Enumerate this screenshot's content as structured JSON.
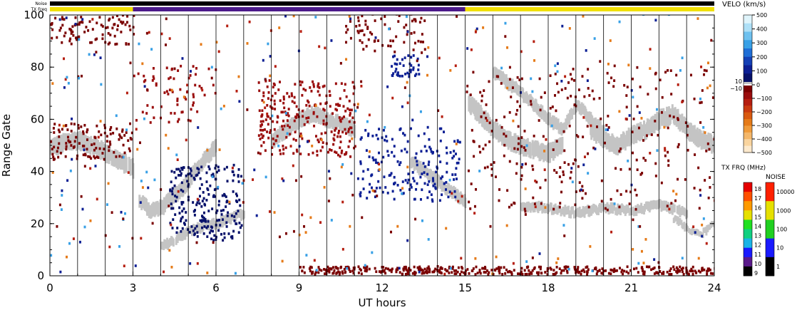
{
  "chart_data": {
    "type": "heatmap",
    "xlabel": "UT hours",
    "ylabel": "Range Gate",
    "xlim": [
      0,
      24
    ],
    "ylim": [
      0,
      100
    ],
    "x_ticks": [
      "0",
      "3",
      "6",
      "9",
      "12",
      "15",
      "18",
      "21",
      "24"
    ],
    "y_ticks": [
      "0",
      "20",
      "40",
      "60",
      "80",
      "100"
    ],
    "grid": "vertical lines every hour",
    "top_bars": {
      "noise_label": "Noise",
      "txfreq_label": "TX Freq",
      "segments": [
        {
          "from": 0,
          "to": 3,
          "color": "#f0e000"
        },
        {
          "from": 3,
          "to": 15,
          "color": "#4b1a8a"
        },
        {
          "from": 15,
          "to": 24,
          "color": "#f0e000"
        }
      ]
    },
    "velocity_legend": {
      "title": "VELO (km/s)",
      "ticks": [
        "500",
        "400",
        "300",
        "200",
        "100",
        "0",
        "−100",
        "−200",
        "−300",
        "−400",
        "−500"
      ],
      "ground_scatter_labels": [
        "10",
        "−10"
      ],
      "colors_positive": [
        "#dff4fb",
        "#aee0f7",
        "#6ec1ef",
        "#38a0e6",
        "#1f6ed6",
        "#1440b5",
        "#0c1f94",
        "#07116a"
      ],
      "colors_negative": [
        "#7a0000",
        "#9a0d0d",
        "#b51e10",
        "#c93a10",
        "#d95a10",
        "#e57a18",
        "#ef9a3a",
        "#f4b76a",
        "#f9d49e",
        "#fce9cc"
      ]
    },
    "txfreq_legend": {
      "title": "TX FRQ (MHz)",
      "ticks": [
        "9",
        "10",
        "11",
        "12",
        "13",
        "14",
        "15",
        "16",
        "17",
        "18"
      ],
      "colors": [
        "#000000",
        "#5a1a8a",
        "#1a1aff",
        "#1ab4e6",
        "#10d080",
        "#20e020",
        "#e6e000",
        "#ff9a00",
        "#ff5000",
        "#e60000"
      ]
    },
    "noise_legend": {
      "title": "NOISE",
      "ticks": [
        "1",
        "10",
        "100",
        "1000",
        "10000"
      ],
      "colors": [
        "#000000",
        "#1a1aff",
        "#20d020",
        "#e6e000",
        "#ff2000"
      ]
    },
    "series": [
      {
        "kind": "ground scatter band",
        "color": "#c4c4c4",
        "x": [
          0,
          0.5,
          1,
          1.5,
          2,
          2.5,
          3
        ],
        "y": [
          49,
          51,
          52,
          50,
          47,
          44,
          41
        ],
        "width": 6
      },
      {
        "kind": "ground scatter band",
        "color": "#c4c4c4",
        "x": [
          3.2,
          3.6,
          4,
          4.4,
          4.8,
          5.2,
          5.6,
          6
        ],
        "y": [
          29,
          25,
          26,
          30,
          34,
          40,
          45,
          50
        ],
        "width": 5
      },
      {
        "kind": "ground scatter band",
        "color": "#c4c4c4",
        "x": [
          4,
          4.5,
          5,
          5.5,
          6,
          6.5,
          7
        ],
        "y": [
          11,
          14,
          17,
          19,
          20,
          22,
          24
        ],
        "width": 3
      },
      {
        "kind": "ground scatter band",
        "color": "#c4c4c4",
        "x": [
          8,
          8.5,
          9,
          9.5,
          10,
          10.5,
          11
        ],
        "y": [
          52,
          56,
          60,
          62,
          60,
          58,
          56
        ],
        "width": 5
      },
      {
        "kind": "ground scatter band",
        "color": "#c4c4c4",
        "x": [
          13,
          13.5,
          14,
          14.5,
          15
        ],
        "y": [
          44,
          40,
          36,
          32,
          28
        ],
        "width": 4
      },
      {
        "kind": "ground scatter band",
        "color": "#c4c4c4",
        "x": [
          15.1,
          15.5,
          16,
          16.5,
          17,
          17.5,
          18,
          18.5
        ],
        "y": [
          66,
          62,
          56,
          52,
          50,
          48,
          47,
          50
        ],
        "width": 6
      },
      {
        "kind": "ground scatter band",
        "color": "#c4c4c4",
        "x": [
          16,
          16.5,
          17,
          17.5,
          18,
          18.5,
          19,
          19.5,
          20
        ],
        "y": [
          78,
          74,
          70,
          65,
          60,
          56,
          66,
          60,
          55
        ],
        "width": 4
      },
      {
        "kind": "ground scatter band",
        "color": "#c4c4c4",
        "x": [
          19.5,
          20,
          20.5,
          21,
          21.5,
          22,
          22.5,
          23,
          23.5,
          24
        ],
        "y": [
          56,
          52,
          50,
          54,
          56,
          60,
          62,
          56,
          52,
          50
        ],
        "width": 6
      },
      {
        "kind": "ground scatter band",
        "color": "#c4c4c4",
        "x": [
          17,
          18,
          19,
          20,
          21,
          22,
          23
        ],
        "y": [
          27,
          26,
          24,
          26,
          25,
          27,
          24
        ],
        "width": 3
      },
      {
        "kind": "ground scatter band",
        "color": "#c4c4c4",
        "x": [
          22.5,
          23,
          23.5,
          24
        ],
        "y": [
          22,
          18,
          16,
          20
        ],
        "width": 2
      },
      {
        "kind": "velocity cluster",
        "color": "#07116a",
        "ranges": {
          "x": [
            4.3,
            6.9
          ],
          "y": [
            13,
            42
          ]
        },
        "density": 220
      },
      {
        "kind": "velocity cluster",
        "color": "#0c1f94",
        "ranges": {
          "x": [
            11,
            14.8
          ],
          "y": [
            28,
            56
          ]
        },
        "density": 170
      },
      {
        "kind": "velocity cluster",
        "color": "#0c1f94",
        "ranges": {
          "x": [
            12.3,
            13.3
          ],
          "y": [
            76,
            84
          ]
        },
        "density": 40
      },
      {
        "kind": "velocity cluster",
        "color": "#7a0000",
        "ranges": {
          "x": [
            0,
            3
          ],
          "y": [
            88,
            100
          ]
        },
        "density": 90
      },
      {
        "kind": "velocity cluster",
        "color": "#7a0000",
        "ranges": {
          "x": [
            0,
            3
          ],
          "y": [
            44,
            58
          ]
        },
        "density": 110
      },
      {
        "kind": "velocity cluster",
        "color": "#9a0d0d",
        "ranges": {
          "x": [
            7.5,
            11
          ],
          "y": [
            45,
            75
          ]
        },
        "density": 260
      },
      {
        "kind": "velocity cluster",
        "color": "#7a0000",
        "ranges": {
          "x": [
            9,
            24
          ],
          "y": [
            0,
            3
          ]
        },
        "density": 420
      },
      {
        "kind": "velocity cluster",
        "color": "#7a0000",
        "ranges": {
          "x": [
            15,
            24
          ],
          "y": [
            24,
            80
          ]
        },
        "density": 260
      },
      {
        "kind": "velocity cluster",
        "color": "#9a0d0d",
        "ranges": {
          "x": [
            3,
            6
          ],
          "y": [
            58,
            80
          ]
        },
        "density": 70
      },
      {
        "kind": "velocity cluster",
        "color": "#7a0000",
        "ranges": {
          "x": [
            10.5,
            13.5
          ],
          "y": [
            85,
            100
          ]
        },
        "density": 70
      },
      {
        "kind": "scatter noise",
        "colors": [
          "#7a0000",
          "#0c1f94",
          "#e57a18",
          "#38a0e6",
          "#b51e10"
        ],
        "ranges": {
          "x": [
            0,
            24
          ],
          "y": [
            0,
            100
          ]
        },
        "density": 450
      }
    ]
  }
}
